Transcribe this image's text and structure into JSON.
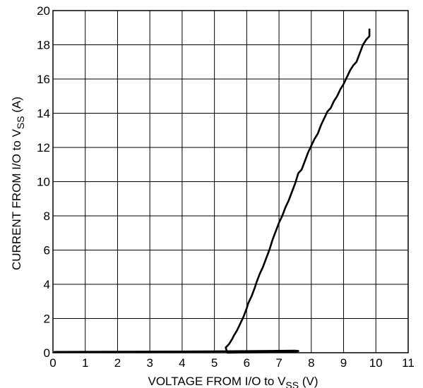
{
  "chart_data": {
    "type": "line",
    "title": "",
    "xlabel": "VOLTAGE FROM I/O to V",
    "xlabel_sub": "SS",
    "xlabel_suffix": " (V)",
    "ylabel": "CURRENT FROM I/O to V",
    "ylabel_sub": "SS",
    "ylabel_suffix": " (A)",
    "xlim": [
      0,
      11
    ],
    "ylim": [
      0,
      20
    ],
    "x_ticks": [
      "0",
      "1",
      "2",
      "3",
      "4",
      "5",
      "6",
      "7",
      "8",
      "9",
      "10",
      "11"
    ],
    "y_ticks": [
      "0",
      "2",
      "4",
      "6",
      "8",
      "10",
      "12",
      "14",
      "16",
      "18",
      "20"
    ],
    "grid": true,
    "series": [
      {
        "color": "#000000",
        "x": [
          0.05,
          5.0,
          7.5,
          7.6,
          7.5,
          5.4,
          5.35,
          5.45,
          5.55,
          5.6,
          5.7,
          5.8,
          5.9,
          6.0,
          6.05,
          6.15,
          6.25,
          6.3,
          6.4,
          6.5,
          6.6,
          6.7,
          6.8,
          6.9,
          7.0,
          7.1,
          7.2,
          7.3,
          7.4,
          7.5,
          7.6,
          7.7,
          7.8,
          7.9,
          8.0,
          8.1,
          8.2,
          8.3,
          8.4,
          8.5,
          8.6,
          8.7,
          8.8,
          8.9,
          9.0,
          9.1,
          9.2,
          9.3,
          9.4,
          9.5,
          9.6,
          9.7,
          9.8,
          9.8
        ],
        "y": [
          0.05,
          0.08,
          0.12,
          0.1,
          0.05,
          0.0,
          0.3,
          0.5,
          0.8,
          1.0,
          1.3,
          1.7,
          2.1,
          2.6,
          2.9,
          3.3,
          3.8,
          4.1,
          4.6,
          5.0,
          5.5,
          6.0,
          6.6,
          7.1,
          7.6,
          8.0,
          8.5,
          8.9,
          9.4,
          9.9,
          10.5,
          10.7,
          11.2,
          11.7,
          12.1,
          12.5,
          12.8,
          13.3,
          13.7,
          14.1,
          14.3,
          14.7,
          15.0,
          15.4,
          15.7,
          16.1,
          16.5,
          16.8,
          17.0,
          17.5,
          18.0,
          18.3,
          18.5,
          18.9
        ]
      }
    ]
  }
}
